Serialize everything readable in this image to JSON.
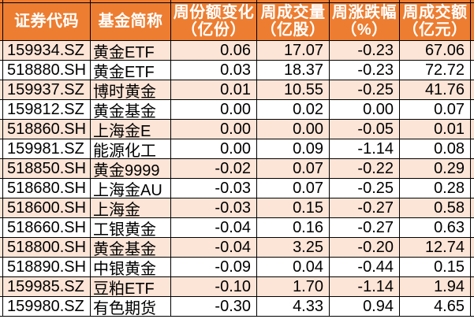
{
  "colors": {
    "header_bg": "#ED7D31",
    "row_alt_bg": "#FCE4D6",
    "row_bg": "#FFFFFF",
    "border": "#000000",
    "header_text": "#FFFFFF",
    "text": "#000000"
  },
  "table": {
    "columns": [
      {
        "line1": "证券代码",
        "line2": ""
      },
      {
        "line1": "基金简称",
        "line2": ""
      },
      {
        "line1": "周份额变化",
        "line2": "（亿份）"
      },
      {
        "line1": "周成交量",
        "line2": "（亿股）"
      },
      {
        "line1": "周涨跌幅",
        "line2": "（%）"
      },
      {
        "line1": "周成交额",
        "line2": "（亿元）"
      }
    ],
    "rows": [
      {
        "code": "159934.SZ",
        "name": "黄金ETF",
        "share_change": "0.06",
        "volume": "17.07",
        "change_pct": "-0.23",
        "turnover": "67.06"
      },
      {
        "code": "518880.SH",
        "name": "黄金ETF",
        "share_change": "0.03",
        "volume": "18.37",
        "change_pct": "-0.23",
        "turnover": "72.72"
      },
      {
        "code": "159937.SZ",
        "name": "博时黄金",
        "share_change": "0.01",
        "volume": "10.55",
        "change_pct": "-0.25",
        "turnover": "41.76"
      },
      {
        "code": "159812.SZ",
        "name": "黄金基金",
        "share_change": "0.00",
        "volume": "0.02",
        "change_pct": "0.00",
        "turnover": "0.07"
      },
      {
        "code": "518860.SH",
        "name": "上海金E",
        "share_change": "0.00",
        "volume": "0.00",
        "change_pct": "-0.05",
        "turnover": "0.01"
      },
      {
        "code": "159981.SZ",
        "name": "能源化工",
        "share_change": "0.00",
        "volume": "0.09",
        "change_pct": "-1.14",
        "turnover": "0.08"
      },
      {
        "code": "518850.SH",
        "name": "黄金9999",
        "share_change": "-0.02",
        "volume": "0.07",
        "change_pct": "-0.22",
        "turnover": "0.29"
      },
      {
        "code": "518680.SH",
        "name": "上海金AU",
        "share_change": "-0.03",
        "volume": "0.07",
        "change_pct": "-0.25",
        "turnover": "0.28"
      },
      {
        "code": "518600.SH",
        "name": "上海金",
        "share_change": "-0.03",
        "volume": "0.15",
        "change_pct": "-0.27",
        "turnover": "0.58"
      },
      {
        "code": "518660.SH",
        "name": "工银黄金",
        "share_change": "-0.04",
        "volume": "0.16",
        "change_pct": "-0.27",
        "turnover": "0.63"
      },
      {
        "code": "518800.SH",
        "name": "黄金基金",
        "share_change": "-0.04",
        "volume": "3.25",
        "change_pct": "-0.20",
        "turnover": "12.74"
      },
      {
        "code": "518890.SH",
        "name": "中银黄金",
        "share_change": "-0.09",
        "volume": "0.04",
        "change_pct": "-0.44",
        "turnover": "0.15"
      },
      {
        "code": "159985.SZ",
        "name": "豆粕ETF",
        "share_change": "-0.10",
        "volume": "1.70",
        "change_pct": "-1.14",
        "turnover": "1.94"
      },
      {
        "code": "159980.SZ",
        "name": "有色期货",
        "share_change": "-0.30",
        "volume": "4.33",
        "change_pct": "0.94",
        "turnover": "4.65"
      }
    ]
  }
}
